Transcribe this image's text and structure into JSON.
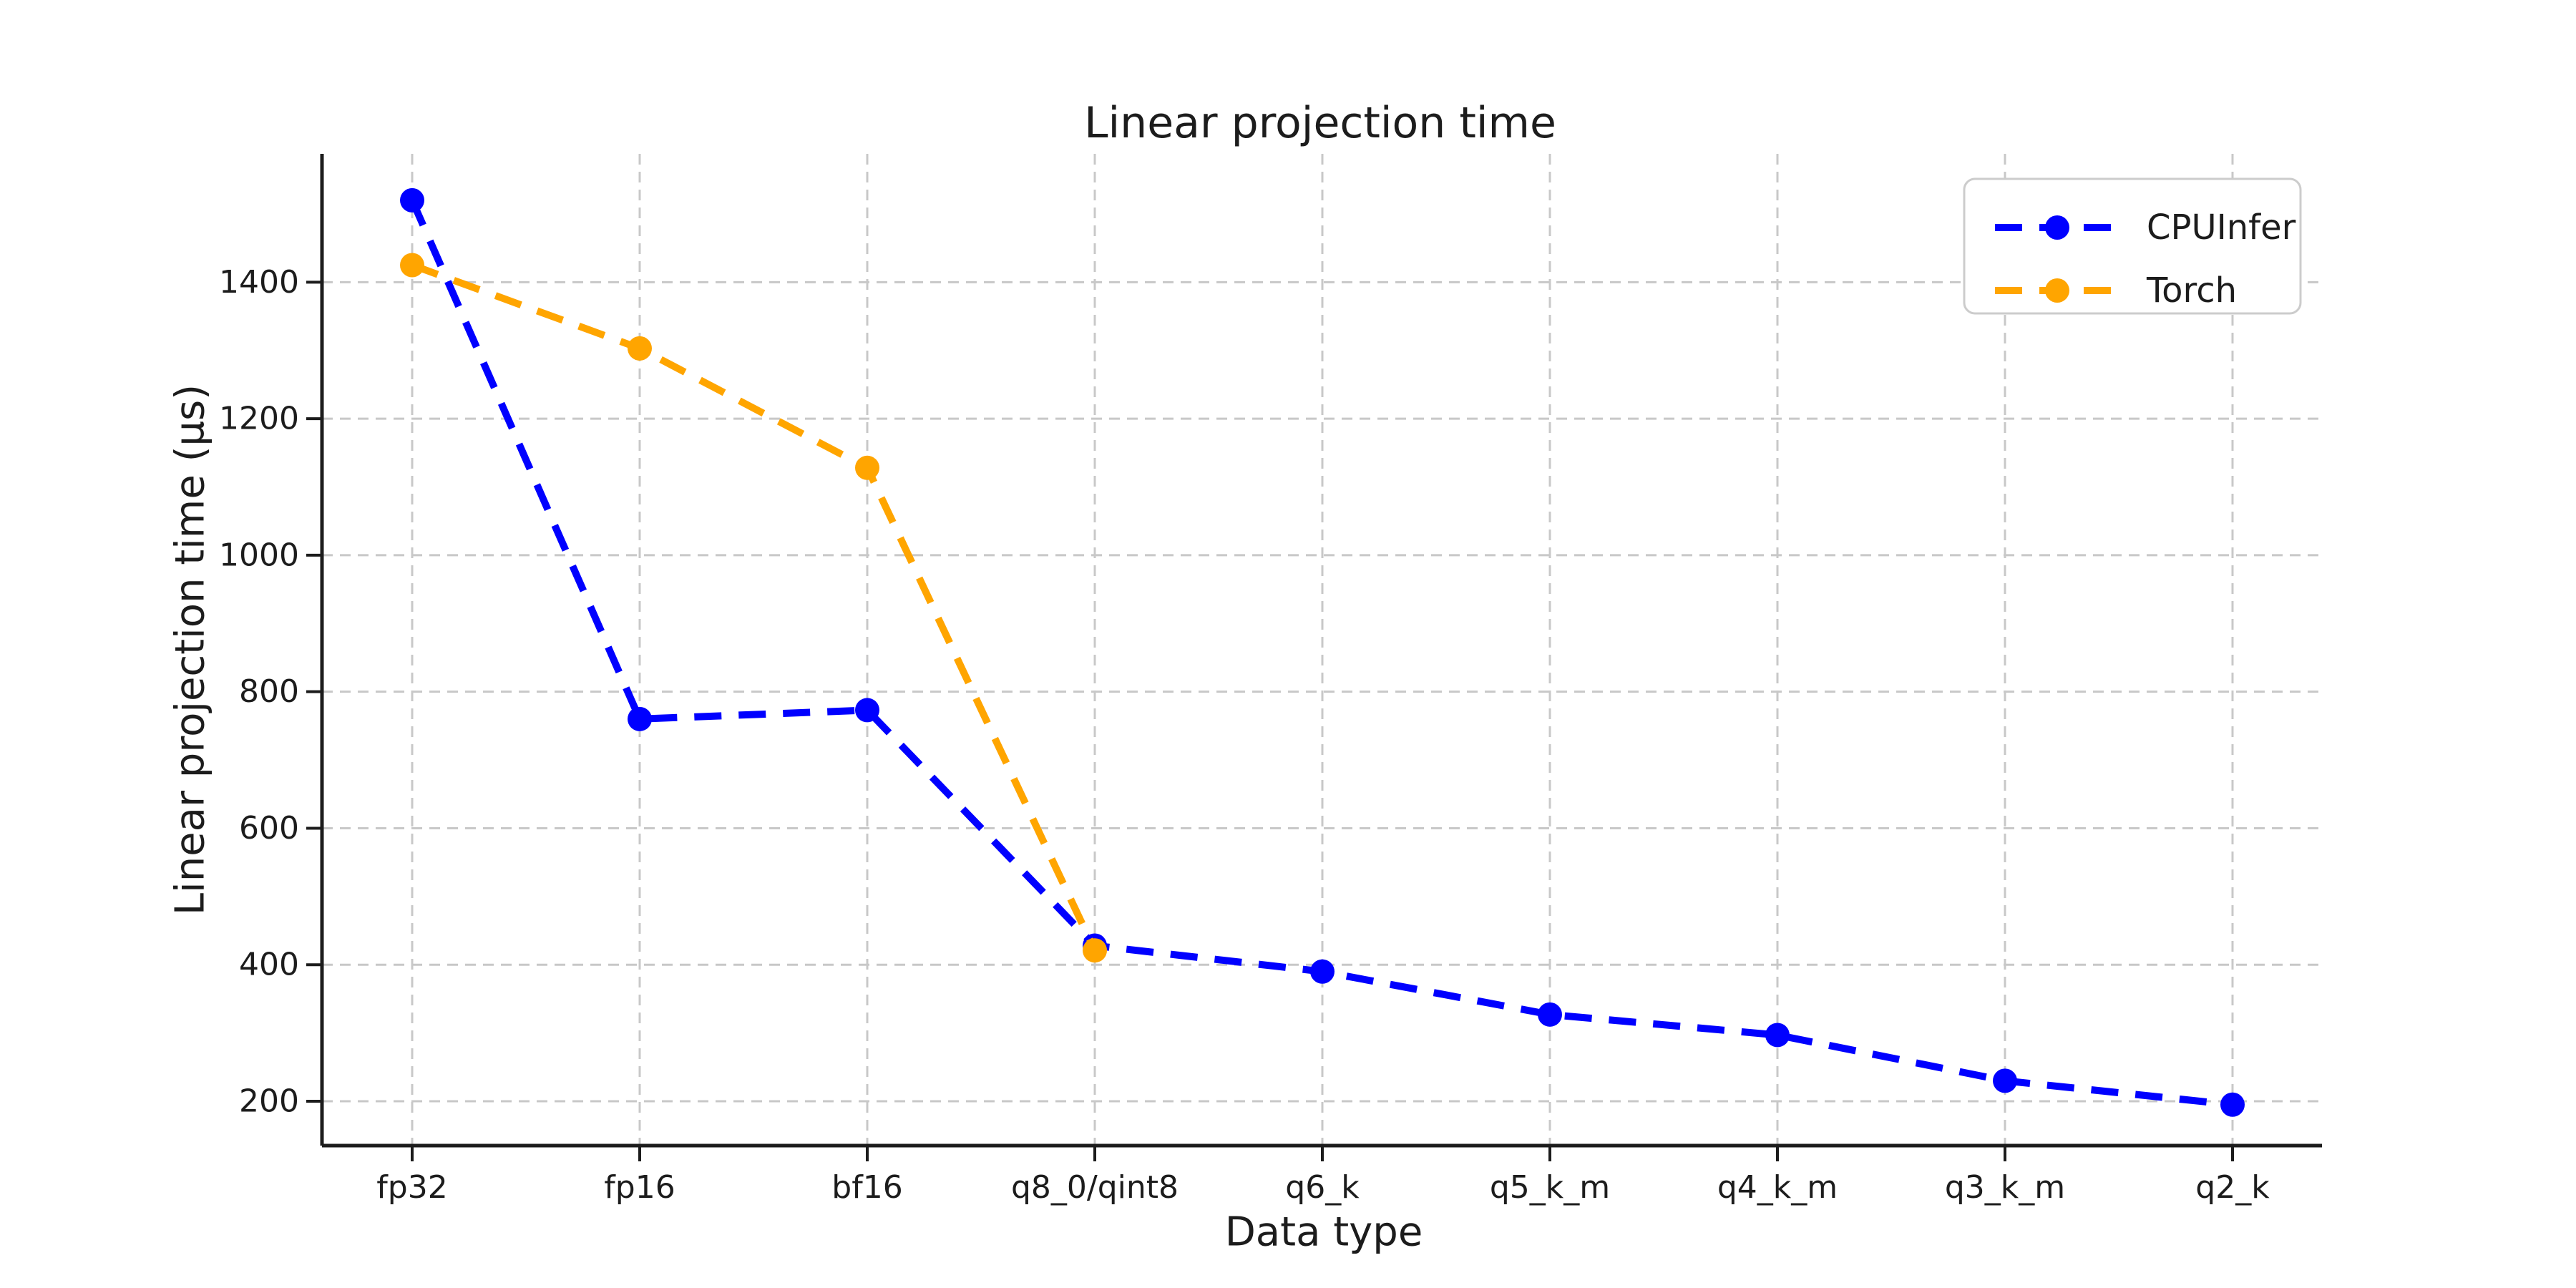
{
  "chart_data": {
    "type": "line",
    "title": "Linear projection time",
    "xlabel": "Data type",
    "ylabel": "Linear projection time (µs)",
    "categories": [
      "fp32",
      "fp16",
      "bf16",
      "q8_0/qint8",
      "q6_k",
      "q5_k_m",
      "q4_k_m",
      "q3_k_m",
      "q2_k"
    ],
    "y_tick_labels": [
      "200",
      "400",
      "600",
      "800",
      "1000",
      "1200",
      "1400"
    ],
    "y_ticks": [
      200,
      400,
      600,
      800,
      1000,
      1200,
      1400
    ],
    "ylim": [
      135,
      1588
    ],
    "grid": true,
    "grid_style": "dashed",
    "line_style": "dashed",
    "marker": "circle",
    "legend_position": "upper right",
    "series": [
      {
        "name": "CPUInfer",
        "color": "#0000ff",
        "values": [
          1520,
          760,
          773,
          428,
          390,
          327,
          297,
          230,
          195
        ]
      },
      {
        "name": "Torch",
        "color": "#ffa500",
        "values": [
          1425,
          1303,
          1128,
          421,
          null,
          null,
          null,
          null,
          null
        ]
      }
    ],
    "colors": {
      "cpuinfer_blue": "#0000ff",
      "torch_orange": "#ffa500",
      "grid": "#c8c8c8",
      "axis": "#1c1c1c",
      "text": "#1c1c1c",
      "legend_border": "#cccccc",
      "background": "#ffffff"
    }
  }
}
